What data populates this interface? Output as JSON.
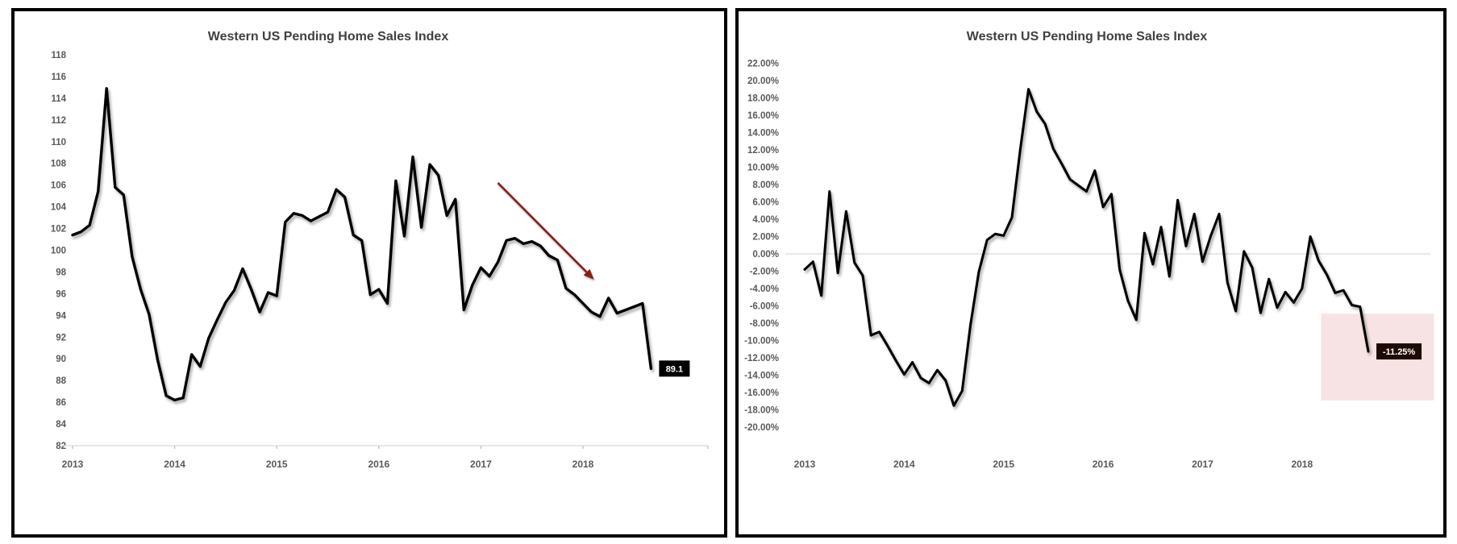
{
  "page": {
    "background_color": "#ffffff",
    "panel_border_color": "#000000"
  },
  "chart_data": [
    {
      "type": "line",
      "title": "Western US Pending Home Sales Index",
      "x_start": "2013-01",
      "x_end": "2018-09",
      "x_tick_labels": [
        "2013",
        "2014",
        "2015",
        "2016",
        "2017",
        "2018"
      ],
      "y_tick_labels": [
        "118",
        "116",
        "114",
        "112",
        "110",
        "108",
        "106",
        "104",
        "102",
        "100",
        "98",
        "96",
        "94",
        "92",
        "90",
        "88",
        "86",
        "84",
        "82"
      ],
      "ylim": [
        82,
        118
      ],
      "grid": "none",
      "axis_line": "light gray bottom axis with year ticks",
      "legend": "none",
      "line_color": "#000000",
      "series": [
        {
          "values": [
            101.4,
            101.7,
            102.3,
            105.4,
            114.9,
            105.8,
            105.1,
            99.4,
            96.4,
            94.1,
            89.9,
            86.6,
            86.2,
            86.4,
            90.4,
            89.3,
            91.9,
            93.6,
            95.2,
            96.3,
            98.3,
            96.4,
            94.3,
            96.1,
            95.8,
            102.6,
            103.4,
            103.2,
            102.7,
            103.1,
            103.5,
            105.6,
            104.9,
            101.4,
            100.9,
            95.9,
            96.4,
            95.1,
            106.4,
            101.3,
            108.6,
            102.1,
            107.9,
            106.9,
            103.2,
            104.7,
            94.5,
            96.8,
            98.4,
            97.6,
            98.9,
            100.9,
            101.1,
            100.6,
            100.8,
            100.4,
            99.5,
            99.1,
            96.5,
            95.9,
            95.1,
            94.3,
            93.9,
            95.6,
            94.2,
            94.5,
            94.8,
            95.1,
            89.1
          ]
        }
      ],
      "end_point_label": "89.1",
      "end_label_bg": "#000000",
      "annotations": [
        {
          "type": "arrow",
          "color": "#8b1e16",
          "from_month_index": 50,
          "from_value": 106.2,
          "to_month_index": 61.3,
          "to_value": 97.3
        }
      ]
    },
    {
      "type": "line",
      "title": "Western US Pending Home Sales Index",
      "x_start": "2013-01",
      "x_end": "2018-09",
      "x_tick_labels": [
        "2013",
        "2014",
        "2015",
        "2016",
        "2017",
        "2018"
      ],
      "y_tick_labels": [
        "22.00%",
        "20.00%",
        "18.00%",
        "16.00%",
        "14.00%",
        "12.00%",
        "10.00%",
        "8.00%",
        "6.00%",
        "4.00%",
        "2.00%",
        "0.00%",
        "-2.00%",
        "-4.00%",
        "-6.00%",
        "-8.00%",
        "-10.00%",
        "-12.00%",
        "-14.00%",
        "-16.00%",
        "-18.00%",
        "-20.00%"
      ],
      "ylim_pct": [
        -20,
        22
      ],
      "grid": "zero gridline only",
      "zero_gridline_color": "#d9d9d9",
      "legend": "none",
      "line_color": "#000000",
      "series": [
        {
          "values": [
            -1.8,
            -0.9,
            -4.8,
            7.2,
            -2.2,
            4.9,
            -1.0,
            -2.5,
            -9.4,
            -9.0,
            -10.6,
            -12.3,
            -13.9,
            -12.5,
            -14.3,
            -14.9,
            -13.4,
            -14.6,
            -17.5,
            -15.8,
            -8.2,
            -2.1,
            1.6,
            2.3,
            2.1,
            4.2,
            12.0,
            19.0,
            16.4,
            15.0,
            12.1,
            10.4,
            8.6,
            7.9,
            7.2,
            9.6,
            5.4,
            6.9,
            -1.8,
            -5.4,
            -7.6,
            2.4,
            -1.2,
            3.1,
            -2.6,
            6.2,
            0.9,
            4.6,
            -0.9,
            2.1,
            4.6,
            -3.3,
            -6.6,
            0.3,
            -1.6,
            -6.8,
            -2.9,
            -6.2,
            -4.4,
            -5.6,
            -4.0,
            2.0,
            -0.8,
            -2.4,
            -4.5,
            -4.2,
            -5.9,
            -6.1,
            -11.25
          ]
        }
      ],
      "end_point_label": "-11.25%",
      "end_label_bg": "#1d0a05",
      "annotations": [
        {
          "type": "highlight-box",
          "color": "#f7e3e3",
          "from_month_index": 62.3,
          "to_month_index": 75.9,
          "top_pct": -6.9,
          "bottom_pct": -16.9
        }
      ]
    }
  ]
}
